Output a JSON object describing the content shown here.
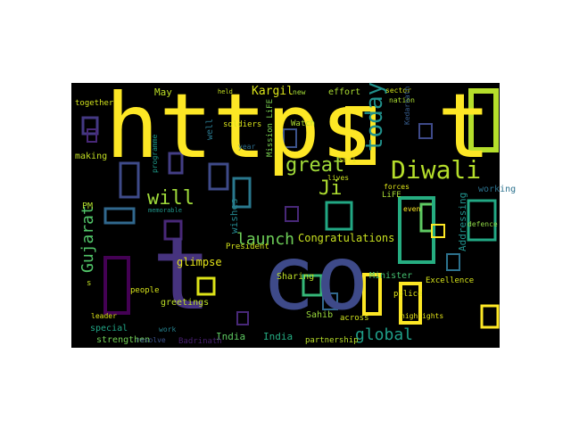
{
  "words": [
    "https",
    "t",
    "t",
    "co",
    "Diwali",
    "today",
    "great",
    "Ji",
    "will",
    "launch",
    "Gujarat",
    "Congratulations",
    "global",
    "glimpse",
    "Kargil",
    "May",
    "together",
    "making",
    "PM",
    "wishes",
    "soldiers",
    "held",
    "new",
    "effort",
    "sector",
    "nation",
    "Kedarnath",
    "Watch",
    "Mission LiFE",
    "Shri",
    "LiFE",
    "forces",
    "working",
    "Addressing",
    "even",
    "lives",
    "programme",
    "well",
    "memorable",
    "President",
    "people",
    "Sharing",
    "Minister",
    "police",
    "highlights",
    "Excellence",
    "greetings",
    "Sahib",
    "across",
    "leader",
    "special",
    "work",
    "India",
    "India",
    "partnership",
    "strengthen",
    "resolve",
    "Badrinath",
    "defence",
    "year",
    "s"
  ]
}
